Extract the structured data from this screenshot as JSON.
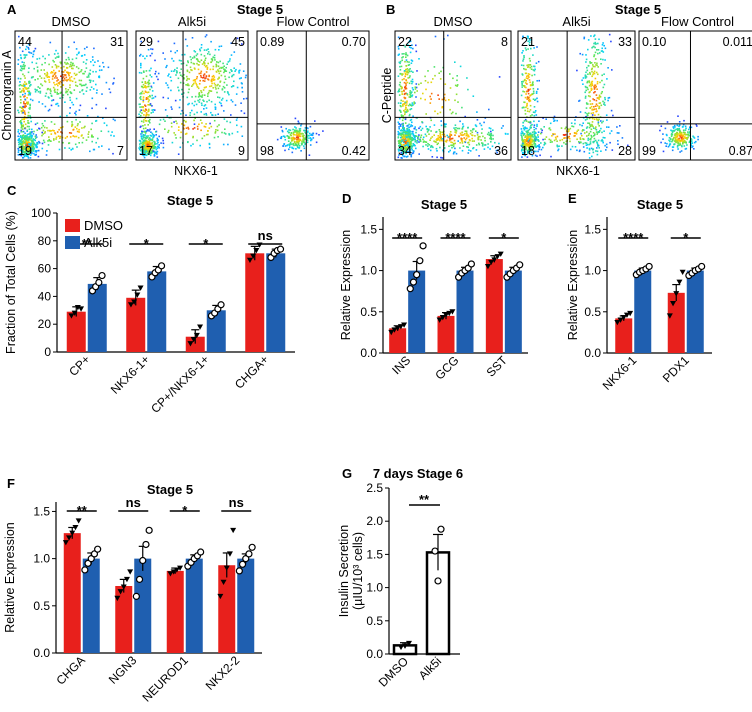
{
  "colors": {
    "dmso": "#e8201c",
    "alk5i": "#1f5fb0",
    "insulin_bar": "#ffffff",
    "axis": "#000000"
  },
  "flow_panels": [
    {
      "letter": "A",
      "title": "Stage 5",
      "y_axis_label": "Chromogranin A",
      "x_axis_label": "NKX6-1",
      "plots": [
        {
          "title": "DMSO",
          "pop": "dmso_a",
          "q": [
            "44",
            "31",
            "19",
            "7"
          ]
        },
        {
          "title": "Alk5i",
          "pop": "alk5i_a",
          "q": [
            "29",
            "45",
            "17",
            "9"
          ]
        },
        {
          "title": "Flow Control",
          "pop": "ctrl",
          "q": [
            "0.89",
            "0.70",
            "98",
            "0.42"
          ]
        }
      ]
    },
    {
      "letter": "B",
      "title": "Stage 5",
      "y_axis_label": "C-Peptide",
      "x_axis_label": "NKX6-1",
      "plots": [
        {
          "title": "DMSO",
          "pop": "dmso_b",
          "q": [
            "22",
            "8",
            "34",
            "36"
          ]
        },
        {
          "title": "Alk5i",
          "pop": "alk5i_b",
          "q": [
            "21",
            "33",
            "18",
            "28"
          ]
        },
        {
          "title": "Flow Control",
          "pop": "ctrl",
          "q": [
            "0.10",
            "0.011",
            "99",
            "0.87"
          ]
        }
      ]
    }
  ],
  "chart_data": [
    {
      "panel": "C",
      "type": "bar",
      "title": "Stage 5",
      "ylabel": "Fraction of Total Cells  (%)",
      "ylim": [
        0,
        100
      ],
      "yticks": [
        0,
        20,
        40,
        60,
        80,
        100
      ],
      "legend": [
        "DMSO",
        "Alk5i"
      ],
      "legend_position": "top-left",
      "categories": [
        "CP+",
        "NKX6-1+",
        "CP+/NKX6-1+",
        "CHGA+"
      ],
      "series": [
        {
          "name": "DMSO",
          "values": [
            29,
            39,
            11,
            71
          ],
          "errors": [
            3.5,
            5.5,
            5,
            5
          ],
          "points": [
            [
              26,
              28,
              32,
              31
            ],
            [
              34,
              36,
              41,
              46
            ],
            [
              6,
              9,
              12,
              18
            ],
            [
              66,
              69,
              73,
              77
            ]
          ]
        },
        {
          "name": "Alk5i",
          "values": [
            49,
            58,
            30,
            71
          ],
          "errors": [
            4.5,
            3.5,
            3.5,
            3
          ],
          "points": [
            [
              44,
              47,
              50,
              55
            ],
            [
              54,
              57,
              59,
              62
            ],
            [
              26,
              28,
              31,
              34
            ],
            [
              68,
              71,
              73,
              74
            ]
          ]
        }
      ],
      "significance": [
        "**",
        "*",
        "*",
        "ns"
      ]
    },
    {
      "panel": "D",
      "type": "bar",
      "title": "Stage 5",
      "ylabel": "Relative Expression",
      "ylim": [
        0,
        1.65
      ],
      "yticks": [
        0.0,
        0.5,
        1.0,
        1.5
      ],
      "categories": [
        "INS",
        "GCG",
        "SST"
      ],
      "series": [
        {
          "name": "DMSO",
          "values": [
            0.3,
            0.45,
            1.14
          ],
          "errors": [
            0.03,
            0.04,
            0.04
          ],
          "points": [
            [
              0.25,
              0.28,
              0.3,
              0.32,
              0.34
            ],
            [
              0.4,
              0.43,
              0.46,
              0.48,
              0.5
            ],
            [
              1.05,
              1.1,
              1.13,
              1.17,
              1.2
            ]
          ]
        },
        {
          "name": "Alk5i",
          "values": [
            1.0,
            1.0,
            1.0
          ],
          "errors": [
            0.11,
            0.04,
            0.04
          ],
          "points": [
            [
              0.78,
              0.86,
              0.95,
              1.12,
              1.3
            ],
            [
              0.92,
              0.97,
              1.0,
              1.03,
              1.08
            ],
            [
              0.92,
              0.96,
              1.0,
              1.03,
              1.07
            ]
          ]
        }
      ],
      "significance": [
        "****",
        "****",
        "*"
      ]
    },
    {
      "panel": "E",
      "type": "bar",
      "title": "Stage 5",
      "ylabel": "Relative Expression",
      "ylim": [
        0,
        1.65
      ],
      "yticks": [
        0.0,
        0.5,
        1.0,
        1.5
      ],
      "categories": [
        "NKX6-1",
        "PDX1"
      ],
      "series": [
        {
          "name": "DMSO",
          "values": [
            0.42,
            0.73
          ],
          "errors": [
            0.03,
            0.1
          ],
          "points": [
            [
              0.37,
              0.4,
              0.43,
              0.46,
              0.48
            ],
            [
              0.45,
              0.6,
              0.72,
              0.86,
              0.98
            ]
          ]
        },
        {
          "name": "Alk5i",
          "values": [
            1.0,
            1.0
          ],
          "errors": [
            0.03,
            0.03
          ],
          "points": [
            [
              0.95,
              0.98,
              1.0,
              1.02,
              1.05
            ],
            [
              0.94,
              0.97,
              1.0,
              1.02,
              1.05
            ]
          ]
        }
      ],
      "significance": [
        "****",
        "*"
      ]
    },
    {
      "panel": "F",
      "type": "bar",
      "title": "Stage 5",
      "ylabel": "Relative Expression",
      "ylim": [
        0,
        1.6
      ],
      "yticks": [
        0.0,
        0.5,
        1.0,
        1.5
      ],
      "categories": [
        "CHGA",
        "NGN3",
        "NEUROD1",
        "NKX2-2"
      ],
      "series": [
        {
          "name": "DMSO",
          "values": [
            1.27,
            0.71,
            0.87,
            0.93
          ],
          "errors": [
            0.06,
            0.07,
            0.03,
            0.13
          ],
          "points": [
            [
              1.17,
              1.22,
              1.27,
              1.33,
              1.4
            ],
            [
              0.58,
              0.65,
              0.7,
              0.78,
              0.86
            ],
            [
              0.84,
              0.86,
              0.88,
              0.9
            ],
            [
              0.6,
              0.75,
              0.9,
              1.05,
              1.3
            ]
          ]
        },
        {
          "name": "Alk5i",
          "values": [
            1.0,
            1.0,
            1.0,
            1.0
          ],
          "errors": [
            0.06,
            0.13,
            0.04,
            0.05
          ],
          "points": [
            [
              0.88,
              0.95,
              1.0,
              1.05,
              1.1
            ],
            [
              0.6,
              0.78,
              0.98,
              1.15,
              1.3
            ],
            [
              0.92,
              0.96,
              1.0,
              1.03,
              1.07
            ],
            [
              0.87,
              0.94,
              1.0,
              1.05,
              1.12
            ]
          ]
        }
      ],
      "significance": [
        "**",
        "ns",
        "*",
        "ns"
      ]
    },
    {
      "panel": "G",
      "type": "bar",
      "title": "7 days Stage 6",
      "ylabel_line1": "Insulin Secretion",
      "ylabel_line2": "(µIU/10³ cells)",
      "ylim": [
        0,
        2.5
      ],
      "yticks": [
        0.0,
        0.5,
        1.0,
        1.5,
        2.0,
        2.5
      ],
      "categories": [
        "DMSO",
        "Alk5i"
      ],
      "values": [
        0.13,
        1.53
      ],
      "errors": [
        0.04,
        0.27
      ],
      "points": [
        [
          0.1,
          0.12,
          0.16
        ],
        [
          1.1,
          1.55,
          1.88
        ]
      ],
      "significance": [
        "**"
      ]
    }
  ]
}
